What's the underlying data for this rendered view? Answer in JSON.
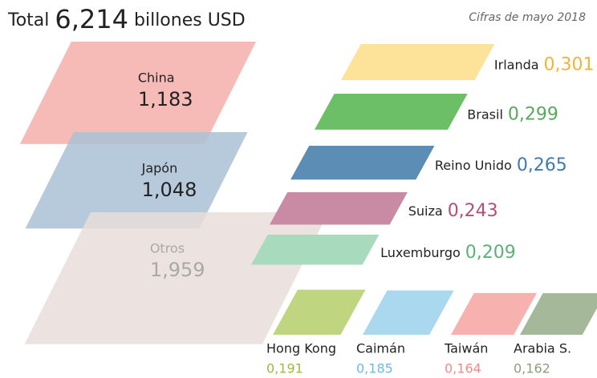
{
  "chart_data": {
    "type": "parallelogram",
    "title": "Total",
    "total": 6.214,
    "total_label": "6,214",
    "unit": "billones USD",
    "subtitle": "Cifras de mayo 2018",
    "categories": [
      "China",
      "Japón",
      "Otros",
      "Irlanda",
      "Brasil",
      "Reino Unido",
      "Suiza",
      "Luxemburgo",
      "Hong Kong",
      "Caimán",
      "Taiwán",
      "Arabia S."
    ],
    "values": [
      1.183,
      1.048,
      1.959,
      0.301,
      0.299,
      0.265,
      0.243,
      0.209,
      0.191,
      0.185,
      0.164,
      0.162
    ],
    "value_labels": [
      "1,183",
      "1,048",
      "1,959",
      "0,301",
      "0,299",
      "0,265",
      "0,243",
      "0,209",
      "0,191",
      "0,185",
      "0,164",
      "0,162"
    ],
    "colors": [
      "#f4aeaa",
      "#a9c1d6",
      "#e9ddd9",
      "#fde39a",
      "#6cbf67",
      "#5b8db5",
      "#c98aa4",
      "#a8dbbd",
      "#bfd57f",
      "#a9d8ef",
      "#f7b1ae",
      "#a5b99a"
    ],
    "value_colors": [
      "#222222",
      "#222222",
      "#a9a9a9",
      "#f0b43a",
      "#5aa860",
      "#3f7ab0",
      "#b24f78",
      "#5cb07a",
      "#9abc3c",
      "#6fb9e0",
      "#ef8a86",
      "#8aa07a"
    ]
  }
}
